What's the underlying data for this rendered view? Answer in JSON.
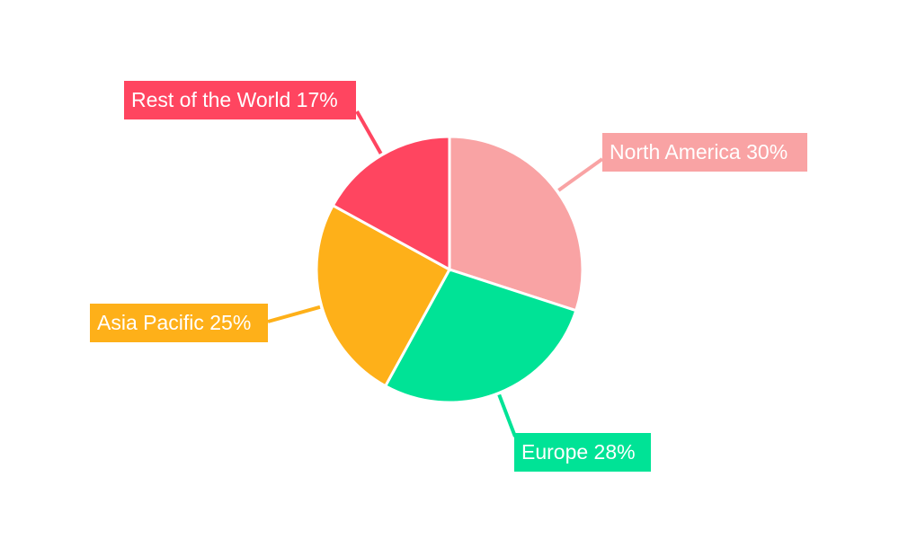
{
  "chart_data": {
    "type": "pie",
    "start_angle": "top, clockwise",
    "legend": "none",
    "slices": [
      {
        "label": "North America",
        "value": 30,
        "text": "North America 30%",
        "color": "#F9A3A4"
      },
      {
        "label": "Europe",
        "value": 28,
        "text": "Europe 28%",
        "color": "#00E396"
      },
      {
        "label": "Asia Pacific",
        "value": 25,
        "text": "Asia Pacific 25%",
        "color": "#FEB019"
      },
      {
        "label": "Rest of the World",
        "value": 17,
        "text": "Rest of the World 17%",
        "color": "#FF4560"
      }
    ]
  }
}
